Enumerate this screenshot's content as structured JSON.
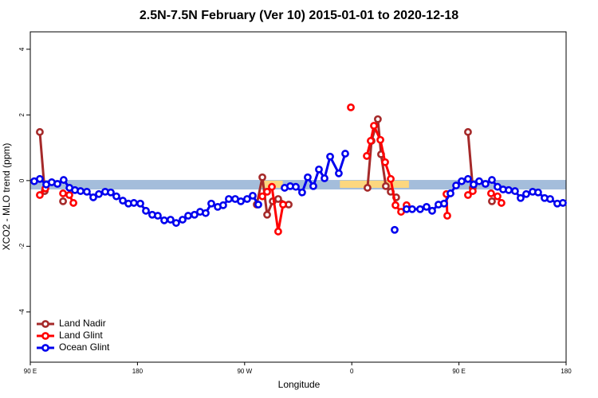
{
  "chart_data": {
    "type": "line",
    "title": "2.5N-7.5N February (Ver 10)   2015-01-01 to 2020-12-18",
    "x_label": "Longitude",
    "y_label": "XCO2 - MLO trend (ppm)",
    "xlim": [
      90,
      540
    ],
    "xticks": [
      {
        "value": 90,
        "label": "90 E"
      },
      180,
      {
        "value": 270,
        "label": "90 W"
      },
      {
        "value": 360,
        "label": "0"
      },
      {
        "value": 450,
        "label": "90 E"
      },
      {
        "value": 540,
        "label": "180"
      }
    ],
    "ylim": [
      -5.53,
      4.53
    ],
    "yticks": [
      -4,
      -2,
      0,
      2,
      4
    ],
    "legend": "bottom-left",
    "band": {
      "color": "#a4bddb",
      "lower": -0.27,
      "upper": 0.02
    },
    "highlights": {
      "color": "#fcd77f",
      "xranges": [
        [
          283,
          302
        ],
        [
          350,
          408
        ]
      ],
      "lower": -0.22,
      "upper": 0.0
    },
    "series": [
      {
        "name": "Land Nadir",
        "color": "#a52a2a",
        "x": [
          98,
          102.1,
          null,
          117.5,
          null,
          280.2,
          284.9,
          288.9,
          293.6,
          298.2,
          307,
          null,
          373.2,
          376.6,
          381.9,
          384.6,
          388.6,
          392.7,
          397.3,
          null,
          457.6,
          461.6,
          null,
          477.7
        ],
        "values": [
          1.48,
          -0.32,
          null,
          -0.63,
          null,
          -0.73,
          0.1,
          -1.04,
          -0.63,
          -0.56,
          -0.73,
          null,
          -0.22,
          1.21,
          1.87,
          0.8,
          -0.17,
          -0.34,
          -0.51,
          null,
          1.48,
          -0.22,
          null,
          -0.63
        ]
      },
      {
        "name": "Land Glint",
        "color": "#ff0000",
        "x": [
          98,
          102.7,
          null,
          117.5,
          122.8,
          126.2,
          null,
          284.9,
          288.9,
          292.9,
          298.2,
          302.3,
          null,
          359.2,
          null,
          372.6,
          375.9,
          378.6,
          384,
          388,
          392.7,
          396.7,
          401.4,
          406,
          null,
          439.5,
          440.2,
          null,
          457.6,
          461.6,
          null,
          477,
          482.4,
          485.7
        ],
        "values": [
          -0.44,
          -0.24,
          null,
          -0.39,
          -0.44,
          -0.68,
          null,
          -0.48,
          -0.34,
          -0.19,
          -1.55,
          -0.73,
          null,
          2.23,
          null,
          0.75,
          1.21,
          1.67,
          1.24,
          0.56,
          0.05,
          -0.75,
          -0.95,
          -0.75,
          null,
          -0.41,
          -1.07,
          null,
          -0.44,
          -0.32,
          null,
          -0.39,
          -0.48,
          -0.68
        ]
      },
      {
        "name": "Ocean Glint",
        "color": "#0000ee",
        "x": [
          93.3,
          98,
          103.4,
          108,
          112.8,
          118,
          122.9,
          127.5,
          132.2,
          137.5,
          142.9,
          147.6,
          152.9,
          157.6,
          162.3,
          167.7,
          172.4,
          177,
          182.4,
          187.1,
          192.4,
          197.1,
          202.5,
          207.8,
          212.5,
          217.9,
          222.6,
          227.9,
          232.6,
          237.3,
          242,
          247.4,
          252,
          256.7,
          262.1,
          266.8,
          272.1,
          276.8,
          281.5,
          null,
          303.6,
          308.3,
          313,
          318.3,
          323,
          327.7,
          332.4,
          337.1,
          341.8,
          349.1,
          354.5,
          null,
          396,
          null,
          406,
          410.7,
          417.4,
          422.8,
          427.5,
          432.8,
          437.5,
          442.9,
          447.6,
          452.3,
          457.6,
          462.3,
          467,
          472.3,
          477.7,
          482.4,
          487.1,
          491.8,
          497.1,
          501.8,
          506.5,
          511.9,
          516.5,
          521.9,
          526.6,
          532.6,
          537.3
        ],
        "values": [
          -0.02,
          0.05,
          -0.12,
          -0.05,
          -0.1,
          0.02,
          -0.22,
          -0.29,
          -0.32,
          -0.34,
          -0.51,
          -0.41,
          -0.34,
          -0.36,
          -0.48,
          -0.61,
          -0.7,
          -0.68,
          -0.7,
          -0.92,
          -1.04,
          -1.07,
          -1.21,
          -1.19,
          -1.29,
          -1.19,
          -1.07,
          -1.04,
          -0.95,
          -0.99,
          -0.7,
          -0.8,
          -0.75,
          -0.56,
          -0.56,
          -0.63,
          -0.56,
          -0.46,
          -0.73,
          null,
          -0.22,
          -0.17,
          -0.19,
          -0.36,
          0.1,
          -0.17,
          0.34,
          0.07,
          0.73,
          0.22,
          0.82,
          null,
          -1.5,
          null,
          -0.87,
          -0.87,
          -0.87,
          -0.8,
          -0.92,
          -0.73,
          -0.7,
          -0.39,
          -0.15,
          -0.02,
          0.05,
          -0.12,
          -0.02,
          -0.1,
          0.02,
          -0.19,
          -0.27,
          -0.29,
          -0.32,
          -0.53,
          -0.41,
          -0.34,
          -0.36,
          -0.53,
          -0.56,
          -0.7,
          -0.68
        ]
      }
    ]
  }
}
